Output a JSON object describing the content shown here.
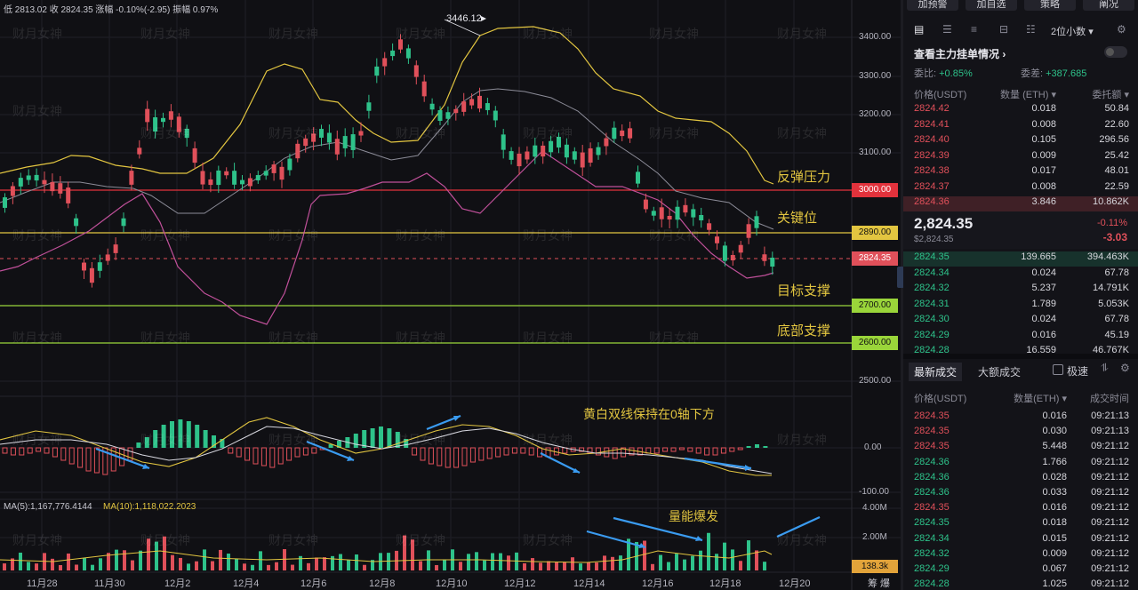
{
  "top_info": {
    "text": "低 2813.02  收 2824.35  涨幅 -0.10%(-2.95)  振幅 0.97%"
  },
  "watermark": "财月女神",
  "price_axis": {
    "labels": [
      "3400.00",
      "3300.00",
      "3200.00",
      "3100.00",
      "2500.00",
      "0.00",
      "-100.00",
      "4.00M",
      "2.00M"
    ]
  },
  "price_tags": {
    "t3000": "3000.00",
    "t2890": "2890.00",
    "t2824": "2824.35",
    "t2700": "2700.00",
    "t2600": "2600.00",
    "vol": "138.3k"
  },
  "annotations": {
    "peak": "3446.12",
    "rebound": "反弹压力",
    "key": "关键位",
    "target": "目标支撑",
    "bottom": "底部支撑",
    "macd_note": "黄白双线保持在0轴下方",
    "vol_note": "量能爆发"
  },
  "ma_legend": {
    "ma5": "MA(5):1,167,776.4144",
    "ma10": "MA(10):1,118,022.2023"
  },
  "x_axis": {
    "labels": [
      "11月28",
      "11月30",
      "12月2",
      "12月4",
      "12月6",
      "12月8",
      "12月10",
      "12月12",
      "12月14",
      "12月16",
      "12月18",
      "12月20"
    ],
    "corner": "筹  爆"
  },
  "panel": {
    "buttons": [
      "加预警",
      "加自选",
      "策略",
      "阐况"
    ],
    "precision": "2位小数",
    "orderbook_title": "查看主力挂单情况",
    "weibi_label": "委比:",
    "weibi_value": "+0.85%",
    "weicha_label": "委差:",
    "weicha_value": "+387.685",
    "cols": [
      "价格(USDT)",
      "数量 (ETH)",
      "委托额"
    ],
    "asks": [
      [
        "2824.42",
        "0.018",
        "50.84"
      ],
      [
        "2824.41",
        "0.008",
        "22.60"
      ],
      [
        "2824.40",
        "0.105",
        "296.56"
      ],
      [
        "2824.39",
        "0.009",
        "25.42"
      ],
      [
        "2824.38",
        "0.017",
        "48.01"
      ],
      [
        "2824.37",
        "0.008",
        "22.59"
      ],
      [
        "2824.36",
        "3.846",
        "10.862K"
      ]
    ],
    "last_price": "2,824.35",
    "last_sub": "$2,824.35",
    "change_pct": "-0.11%",
    "change_abs": "-3.03",
    "bids": [
      [
        "2824.35",
        "139.665",
        "394.463K"
      ],
      [
        "2824.34",
        "0.024",
        "67.78"
      ],
      [
        "2824.32",
        "5.237",
        "14.791K"
      ],
      [
        "2824.31",
        "1.789",
        "5.053K"
      ],
      [
        "2824.30",
        "0.024",
        "67.78"
      ],
      [
        "2824.29",
        "0.016",
        "45.19"
      ],
      [
        "2824.28",
        "16.559",
        "46.767K"
      ]
    ],
    "tabs": [
      "最新成交",
      "大额成交"
    ],
    "fast_label": "极速",
    "trade_cols": [
      "价格(USDT)",
      "数量(ETH)",
      "成交时间"
    ],
    "trades": [
      [
        "2824.35",
        "0.016",
        "09:21:13",
        "red"
      ],
      [
        "2824.35",
        "0.030",
        "09:21:13",
        "red"
      ],
      [
        "2824.35",
        "5.448",
        "09:21:12",
        "red"
      ],
      [
        "2824.36",
        "1.766",
        "09:21:12",
        "green"
      ],
      [
        "2824.36",
        "0.028",
        "09:21:12",
        "green"
      ],
      [
        "2824.36",
        "0.033",
        "09:21:12",
        "green"
      ],
      [
        "2824.35",
        "0.016",
        "09:21:12",
        "red"
      ],
      [
        "2824.35",
        "0.018",
        "09:21:12",
        "green"
      ],
      [
        "2824.34",
        "0.015",
        "09:21:12",
        "green"
      ],
      [
        "2824.32",
        "0.009",
        "09:21:12",
        "green"
      ],
      [
        "2824.29",
        "0.067",
        "09:21:12",
        "green"
      ],
      [
        "2824.28",
        "1.025",
        "09:21:12",
        "green"
      ]
    ]
  },
  "colors": {
    "up": "#2ec28a",
    "down": "#e0505a",
    "ma_yellow": "#e2c540",
    "bb_pink": "#c0509a",
    "bb_gray": "#8c8c98",
    "line3000": "#e2323c",
    "line2890": "#e2c540",
    "line2700": "#9ad53a"
  }
}
